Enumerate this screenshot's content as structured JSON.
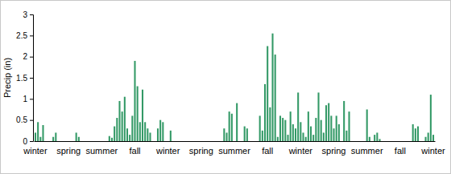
{
  "chart_data": {
    "type": "bar",
    "y_label": "Precip (in)",
    "categories": [
      "winter",
      null,
      null,
      null,
      null,
      null,
      null,
      null,
      null,
      null,
      null,
      null,
      null,
      "spring",
      null,
      null,
      null,
      null,
      null,
      null,
      null,
      null,
      null,
      null,
      null,
      null,
      "summer",
      null,
      null,
      null,
      null,
      null,
      null,
      null,
      null,
      null,
      null,
      null,
      null,
      "fall",
      null,
      null,
      null,
      null,
      null,
      null,
      null,
      null,
      null,
      null,
      null,
      null,
      "winter",
      null,
      null,
      null,
      null,
      null,
      null,
      null,
      null,
      null,
      null,
      null,
      null,
      "spring",
      null,
      null,
      null,
      null,
      null,
      null,
      null,
      null,
      null,
      null,
      null,
      null,
      "summer",
      null,
      null,
      null,
      null,
      null,
      null,
      null,
      null,
      null,
      null,
      null,
      null,
      "fall",
      null,
      null,
      null,
      null,
      null,
      null,
      null,
      null,
      null,
      null,
      null,
      null,
      "winter",
      null,
      null,
      null,
      null,
      null,
      null,
      null,
      null,
      null,
      null,
      null,
      null,
      "spring",
      null,
      null,
      null,
      null,
      null,
      null,
      null,
      null,
      null,
      null,
      null,
      null,
      "summer",
      null,
      null,
      null,
      null,
      null,
      null,
      null,
      null,
      null,
      null,
      null,
      null,
      "fall",
      null,
      null,
      null,
      null,
      null,
      null,
      null,
      null,
      null,
      null,
      null,
      null,
      "winter"
    ],
    "values": [
      0.2,
      0.45,
      0.1,
      0.38,
      0,
      0,
      0,
      0.1,
      0.2,
      0,
      0,
      0,
      0,
      0,
      0,
      0,
      0.2,
      0.1,
      0,
      0,
      0,
      0,
      0,
      0,
      0,
      0,
      0,
      0,
      0,
      0.12,
      0.08,
      0.35,
      0.55,
      0.95,
      0.7,
      1.05,
      0.3,
      0.15,
      0.6,
      1.9,
      1.3,
      0.45,
      1.22,
      0.45,
      0.3,
      0.2,
      0,
      0,
      0.3,
      0.5,
      0.45,
      0,
      0,
      0.25,
      0,
      0,
      0,
      0,
      0,
      0,
      0,
      0,
      0,
      0,
      0,
      0,
      0,
      0,
      0,
      0,
      0,
      0,
      0,
      0,
      0.3,
      0.2,
      0.7,
      0.65,
      0,
      0.9,
      0,
      0,
      0.35,
      0.3,
      0,
      0,
      0,
      0,
      0.6,
      0.25,
      1.35,
      2.25,
      0.8,
      2.55,
      2.05,
      0.1,
      0.6,
      0.55,
      0.5,
      0.15,
      0.7,
      0.4,
      0.3,
      1.15,
      0.45,
      0.2,
      0.1,
      0.7,
      0.35,
      0.15,
      0.55,
      1.15,
      0.5,
      0.2,
      0.85,
      0.9,
      0.6,
      0.3,
      0.6,
      0.4,
      0,
      0.95,
      0.25,
      0.7,
      0,
      0,
      0,
      0,
      0,
      0,
      0.75,
      0.1,
      0,
      0.15,
      0.2,
      0.05,
      0,
      0,
      0,
      0,
      0,
      0,
      0,
      0,
      0,
      0,
      0,
      0,
      0.4,
      0.3,
      0.35,
      0,
      0,
      0.1,
      0.2,
      1.1,
      0.15
    ],
    "color": "#339966",
    "ylim": [
      0,
      3
    ],
    "yticks": [
      0,
      0.5,
      1,
      1.5,
      2,
      2.5,
      3
    ],
    "grid": false
  }
}
